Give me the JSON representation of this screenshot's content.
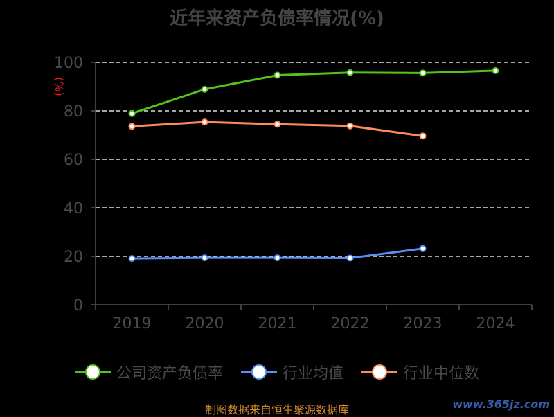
{
  "chart_data": {
    "type": "line",
    "title": "近年来资产负债率情况(%)",
    "ylabel": "(%)",
    "categories": [
      "2019",
      "2020",
      "2021",
      "2022",
      "2023",
      "2024"
    ],
    "ylim": [
      0,
      100
    ],
    "yticks": [
      "0",
      "20",
      "40",
      "60",
      "80",
      "100"
    ],
    "grid": true,
    "legend_position": "bottom",
    "series": [
      {
        "name": "公司资产负债率",
        "color": "#52c41a",
        "values": [
          78.9,
          88.9,
          94.7,
          95.8,
          95.6,
          96.6
        ]
      },
      {
        "name": "行业均值",
        "color": "#5b8ff9",
        "values": [
          19.1,
          19.4,
          19.4,
          19.3,
          23.2,
          null
        ]
      },
      {
        "name": "行业中位数",
        "color": "#ff8c5a",
        "values": [
          73.6,
          75.4,
          74.5,
          73.8,
          69.6,
          null
        ]
      }
    ]
  },
  "source_text": "制图数据来自恒生聚源数据库",
  "watermark": "www.365jz.com"
}
